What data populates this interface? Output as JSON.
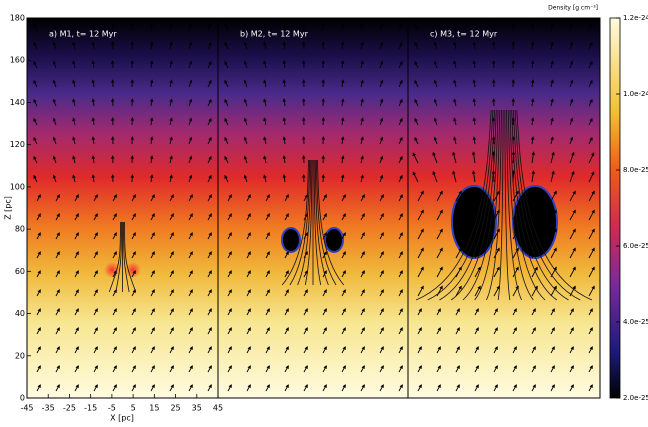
{
  "chart_data": {
    "type": "heatmap",
    "panels": [
      {
        "label": "a) M1, t= 12 Myr"
      },
      {
        "label": "b) M2, t= 12 Myr"
      },
      {
        "label": "c) M3, t= 12 Myr"
      }
    ],
    "xlabel": "X [pc]",
    "ylabel": "Z [pc]",
    "xlim": [
      -45,
      45
    ],
    "xticks": [
      -45,
      -35,
      -25,
      -15,
      -5,
      5,
      15,
      25,
      35,
      45
    ],
    "ylim": [
      0,
      180
    ],
    "yticks": [
      0,
      20,
      40,
      60,
      80,
      100,
      120,
      140,
      160,
      180
    ],
    "colorbar": {
      "label": "Density [g cm⁻³]",
      "lim": [
        2e-25,
        1.2e-24
      ],
      "ticks": [
        {
          "value": 2e-25,
          "label": "2.0e-25"
        },
        {
          "value": 4e-25,
          "label": "4.0e-25"
        },
        {
          "value": 6e-25,
          "label": "6.0e-25"
        },
        {
          "value": 8e-25,
          "label": "8.0e-25"
        },
        {
          "value": 1e-24,
          "label": "1.0e-24"
        },
        {
          "value": 1.2e-24,
          "label": "1.2e-24"
        }
      ]
    }
  }
}
